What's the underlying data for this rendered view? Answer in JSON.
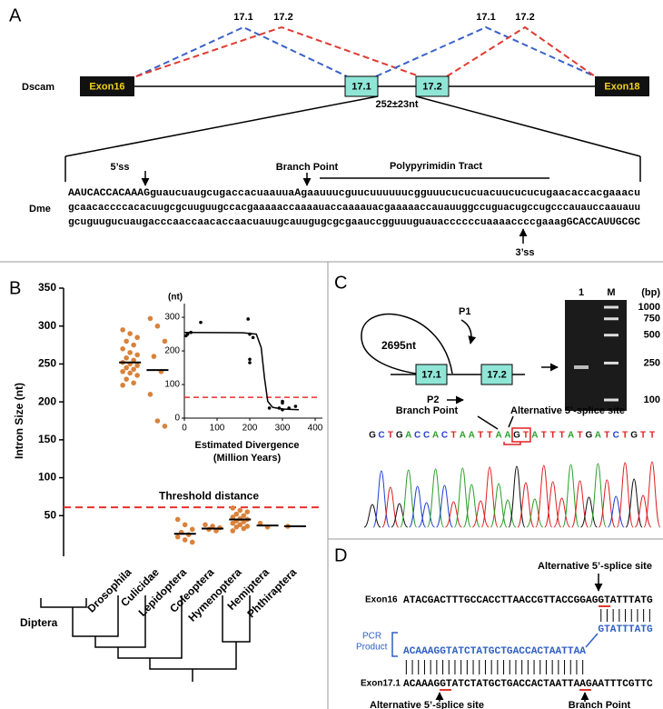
{
  "panel_labels": [
    "A",
    "B",
    "C",
    "D"
  ],
  "panel_a": {
    "isoform_labels": [
      "17.1",
      "17.2",
      "17.1",
      "17.2"
    ],
    "gene": "Dscam",
    "exons": [
      "Exon16",
      "17.1",
      "17.2",
      "Exon18"
    ],
    "intron_length": "252±23nt",
    "five_ss": "5’ss",
    "branch_point": "Branch Point",
    "tract": "Polypyrimidin Tract",
    "species": "Dme",
    "sequence": [
      "AAUCACCACAAAGguaucuaugcugaccacuaauuaAgaauuucguucuuuuuucgguuucucucuacuucucucugaacaccacgaaacu",
      "gcaacaccccacacuugcgcuuguugccacgaaaaaccaaaauaccaaaauacgaaaaaccauauuggccuguacugccugcccauauccaauauu",
      "gcuguugucuaugacccaaccaacaccaacuauugcauugugcgcgaauccgguuuguauaccccccuaaaaccccgaaagGCACCAUUGCGC"
    ],
    "three_ss": "3’ss"
  },
  "chart_data": [
    {
      "type": "strip",
      "y_label": "Intron Size (nt)",
      "categories": [
        "Drosophila",
        "Culicidae",
        "Lepidoptera",
        "Coleoptera",
        "Hymenoptera",
        "Hemiptera",
        "Phthiraptera"
      ],
      "values": [
        [
          295,
          290,
          285,
          280,
          275,
          270,
          265,
          262,
          258,
          255,
          252,
          250,
          248,
          245,
          243,
          240,
          238,
          235,
          230,
          225,
          222
        ],
        [
          310,
          300,
          280,
          260,
          240,
          210,
          175,
          168
        ],
        [
          45,
          38,
          32,
          28,
          25,
          22,
          18,
          15
        ],
        [
          38,
          36,
          34,
          32,
          30
        ],
        [
          60,
          57,
          55,
          52,
          50,
          48,
          46,
          45,
          43,
          42,
          40,
          38,
          36,
          35,
          33,
          30
        ],
        [
          40,
          35
        ],
        [
          36
        ]
      ],
      "means": [
        252,
        242,
        26,
        33,
        45,
        37,
        36
      ],
      "color": "#d9823b",
      "ylim": [
        0,
        350
      ],
      "yticks": [
        50,
        100,
        150,
        200,
        250,
        300,
        350
      ],
      "threshold": 61,
      "threshold_label": "Threshold distance",
      "threshold_color": "#e8302a"
    },
    {
      "type": "scatter",
      "x_label": [
        "Estimated Divergence",
        "(Million Years)"
      ],
      "y_label": "(nt)",
      "x": [
        5,
        10,
        20,
        50,
        195,
        200,
        200,
        200,
        210,
        260,
        290,
        300,
        300,
        300,
        320,
        340
      ],
      "y": [
        245,
        250,
        255,
        285,
        295,
        250,
        175,
        165,
        240,
        30,
        30,
        45,
        50,
        25,
        30,
        35
      ],
      "fit_x": [
        0,
        180,
        220,
        235,
        245,
        255,
        270,
        300,
        350
      ],
      "fit_y": [
        255,
        254,
        250,
        210,
        120,
        50,
        32,
        27,
        25
      ],
      "xlim": [
        0,
        400
      ],
      "xticks": [
        0,
        100,
        200,
        300,
        400
      ],
      "ylim": [
        0,
        330
      ],
      "yticks": [
        0,
        100,
        200,
        300
      ],
      "threshold": 62,
      "threshold_color": "#e8302a"
    }
  ],
  "panel_b": {
    "clade": "Diptera"
  },
  "panel_c": {
    "loop_length": "2695nt",
    "primers": [
      "P1",
      "P2"
    ],
    "exons": [
      "17.1",
      "17.2"
    ],
    "gel_lanes": [
      "1",
      "M"
    ],
    "unit": "(bp)",
    "ladder": [
      1000,
      750,
      500,
      250,
      100
    ],
    "branch_point": "Branch Point",
    "alt_site": "Alternative 5’-splice site",
    "sequence": [
      "G",
      "C",
      "T",
      "G",
      "A",
      "C",
      "C",
      "A",
      "C",
      "T",
      "A",
      "A",
      "T",
      "T",
      "A",
      "A",
      "G",
      "T",
      "A",
      "T",
      "T",
      "T",
      "A",
      "T",
      "G",
      "A",
      "T",
      "C",
      "T",
      "G",
      "T",
      "T"
    ]
  },
  "panel_d": {
    "alt_site_top": "Alternative 5’-splice site",
    "exon16_label": "Exon16",
    "exon16_seq": "ATACGACTTTGCCACCTTAACCGTTACCGGAGGTATTTATG",
    "pcr_label": [
      "PCR",
      "Product"
    ],
    "pcr_seq": "ACAAAGGTATCTATGCTGACCACTAATTAA",
    "pcr_tail": "GTATTTATG",
    "exon17_label": "Exon17.1",
    "exon17_seq": "ACAAAGGTATCTATGCTGACCACTAATTAAGAATTTCGTTC",
    "alt_site_bottom": "Alternative 5’-splice site",
    "branch_point": "Branch Point"
  }
}
